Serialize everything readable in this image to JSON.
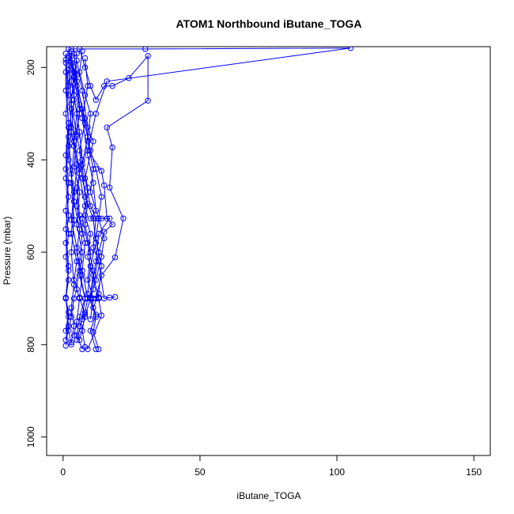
{
  "chart_data": {
    "type": "scatter",
    "title": "ATOM1 Northbound iButane_TOGA",
    "xlabel": "iButane_TOGA",
    "ylabel": "Pressure (mbar)",
    "xlim": [
      -6,
      156
    ],
    "ylim": [
      1040,
      155
    ],
    "y_reversed": true,
    "x_ticks": [
      0,
      50,
      100,
      150
    ],
    "y_ticks": [
      200,
      400,
      600,
      800,
      1000
    ],
    "grid": false,
    "legend": "none",
    "marker": "open-circle",
    "connected": true,
    "colors": {
      "series": "#0000ff",
      "axis": "#000000"
    },
    "series": [
      {
        "points": [
          [
            2,
            180
          ],
          [
            3,
            230
          ],
          [
            5,
            300
          ],
          [
            4,
            360
          ],
          [
            6,
            420
          ],
          [
            5,
            500
          ],
          [
            7,
            560
          ],
          [
            6,
            620
          ],
          [
            5,
            680
          ],
          [
            4,
            700
          ],
          [
            3,
            740
          ],
          [
            2,
            770
          ],
          [
            3,
            800
          ]
        ]
      },
      {
        "points": [
          [
            1,
            190
          ],
          [
            2,
            260
          ],
          [
            3,
            330
          ],
          [
            2,
            400
          ],
          [
            4,
            470
          ],
          [
            3,
            530
          ],
          [
            5,
            590
          ],
          [
            6,
            640
          ],
          [
            8,
            700
          ],
          [
            6,
            740
          ],
          [
            5,
            780
          ],
          [
            7,
            810
          ]
        ]
      },
      {
        "points": [
          [
            4,
            200
          ],
          [
            6,
            280
          ],
          [
            9,
            350
          ],
          [
            7,
            410
          ],
          [
            8,
            480
          ],
          [
            11,
            527
          ],
          [
            12,
            580
          ],
          [
            10,
            630
          ],
          [
            9,
            690
          ],
          [
            12,
            740
          ],
          [
            11,
            773
          ],
          [
            13,
            810
          ]
        ]
      },
      {
        "points": [
          [
            3,
            175
          ],
          [
            5,
            240
          ],
          [
            8,
            310
          ],
          [
            10,
            380
          ],
          [
            12,
            420
          ],
          [
            14,
            480
          ],
          [
            13,
            527
          ],
          [
            15,
            570
          ],
          [
            14,
            610
          ],
          [
            12,
            660
          ],
          [
            10,
            700
          ],
          [
            8,
            740
          ],
          [
            6,
            790
          ]
        ]
      },
      {
        "points": [
          [
            2,
            160
          ],
          [
            4,
            220
          ],
          [
            6,
            290
          ],
          [
            5,
            350
          ],
          [
            7,
            400
          ],
          [
            9,
            460
          ],
          [
            8,
            520
          ],
          [
            10,
            560
          ],
          [
            9,
            610
          ],
          [
            11,
            650
          ],
          [
            13,
            700
          ],
          [
            14,
            737
          ],
          [
            9,
            810
          ]
        ]
      },
      {
        "points": [
          [
            1,
            170
          ],
          [
            1,
            250
          ],
          [
            2,
            320
          ],
          [
            1,
            390
          ],
          [
            2,
            450
          ],
          [
            1,
            510
          ],
          [
            2,
            560
          ],
          [
            1,
            610
          ],
          [
            2,
            660
          ],
          [
            1,
            700
          ],
          [
            2,
            740
          ],
          [
            1,
            790
          ]
        ]
      },
      {
        "points": [
          [
            3,
            165
          ],
          [
            4,
            270
          ],
          [
            3,
            340
          ],
          [
            5,
            410
          ],
          [
            4,
            490
          ],
          [
            6,
            550
          ],
          [
            5,
            600
          ],
          [
            7,
            650
          ],
          [
            6,
            698
          ],
          [
            8,
            735
          ],
          [
            7,
            770
          ],
          [
            8,
            805
          ]
        ]
      },
      {
        "points": [
          [
            5,
            185
          ],
          [
            7,
            250
          ],
          [
            9,
            330
          ],
          [
            11,
            360
          ],
          [
            8,
            440
          ],
          [
            10,
            500
          ],
          [
            12,
            527
          ],
          [
            11,
            590
          ],
          [
            13,
            620
          ],
          [
            15,
            700
          ],
          [
            17,
            698
          ],
          [
            19,
            697
          ]
        ]
      },
      {
        "points": [
          [
            2,
            195
          ],
          [
            3,
            280
          ],
          [
            4,
            370
          ],
          [
            3,
            450
          ],
          [
            4,
            530
          ],
          [
            3,
            600
          ],
          [
            4,
            670
          ],
          [
            3,
            720
          ],
          [
            4,
            760
          ],
          [
            3,
            795
          ]
        ]
      },
      {
        "points": [
          [
            6,
            160
          ],
          [
            8,
            200
          ],
          [
            10,
            240
          ],
          [
            12,
            270
          ],
          [
            15,
            240
          ],
          [
            18,
            240
          ],
          [
            24,
            223
          ],
          [
            31,
            175
          ],
          [
            31,
            272
          ],
          [
            16,
            330
          ],
          [
            18,
            373
          ],
          [
            17,
            460
          ],
          [
            22,
            527
          ],
          [
            19,
            611
          ],
          [
            14,
            650
          ],
          [
            12,
            700
          ]
        ]
      },
      {
        "points": [
          [
            1,
            183
          ],
          [
            2,
            240
          ],
          [
            1,
            300
          ],
          [
            2,
            370
          ],
          [
            1,
            440
          ],
          [
            2,
            520
          ],
          [
            1,
            580
          ],
          [
            2,
            640
          ],
          [
            1,
            698
          ],
          [
            2,
            760
          ],
          [
            1,
            802
          ]
        ]
      },
      {
        "points": [
          [
            4,
            170
          ],
          [
            5,
            230
          ],
          [
            7,
            290
          ],
          [
            8,
            320
          ],
          [
            6,
            380
          ],
          [
            7,
            440
          ],
          [
            9,
            495
          ],
          [
            8,
            540
          ],
          [
            10,
            600
          ],
          [
            9,
            660
          ],
          [
            11,
            700
          ],
          [
            10,
            745
          ]
        ]
      },
      {
        "points": [
          [
            7,
            165
          ],
          [
            6,
            210
          ],
          [
            8,
            260
          ],
          [
            10,
            300
          ],
          [
            9,
            360
          ],
          [
            11,
            420
          ],
          [
            10,
            470
          ],
          [
            13,
            527
          ],
          [
            12,
            570
          ],
          [
            14,
            630
          ],
          [
            13,
            690
          ],
          [
            11,
            720
          ]
        ]
      },
      {
        "points": [
          [
            3,
            160
          ],
          [
            30,
            160
          ],
          [
            105,
            158
          ],
          [
            16,
            230
          ],
          [
            12,
            300
          ],
          [
            9,
            380
          ],
          [
            14,
            424
          ],
          [
            15,
            455
          ],
          [
            16,
            527
          ],
          [
            18,
            540
          ],
          [
            15,
            556
          ],
          [
            13,
            600
          ],
          [
            11,
            680
          ]
        ]
      },
      {
        "points": [
          [
            2,
            205
          ],
          [
            3,
            290
          ],
          [
            2,
            350
          ],
          [
            3,
            430
          ],
          [
            4,
            490
          ],
          [
            3,
            560
          ],
          [
            5,
            620
          ],
          [
            4,
            660
          ],
          [
            6,
            700
          ],
          [
            5,
            750
          ],
          [
            4,
            780
          ]
        ]
      },
      {
        "points": [
          [
            1,
            210
          ],
          [
            2,
            330
          ],
          [
            1,
            420
          ],
          [
            2,
            480
          ],
          [
            1,
            550
          ],
          [
            2,
            630
          ],
          [
            1,
            700
          ],
          [
            2,
            730
          ],
          [
            1,
            770
          ]
        ]
      },
      {
        "points": [
          [
            8,
            180
          ],
          [
            9,
            240
          ],
          [
            7,
            310
          ],
          [
            9,
            390
          ],
          [
            11,
            450
          ],
          [
            12,
            510
          ],
          [
            10,
            527
          ],
          [
            14,
            527
          ],
          [
            17,
            527
          ],
          [
            13,
            560
          ],
          [
            12,
            620
          ],
          [
            10,
            698
          ],
          [
            13,
            698
          ]
        ]
      },
      {
        "points": [
          [
            5,
            170
          ],
          [
            4,
            260
          ],
          [
            6,
            340
          ],
          [
            7,
            400
          ],
          [
            5,
            460
          ],
          [
            6,
            520
          ],
          [
            8,
            580
          ],
          [
            7,
            640
          ],
          [
            9,
            700
          ],
          [
            8,
            730
          ],
          [
            6,
            760
          ]
        ]
      },
      {
        "points": [
          [
            2,
            175
          ],
          [
            4,
            210
          ],
          [
            3,
            280
          ],
          [
            5,
            345
          ],
          [
            4,
            415
          ],
          [
            6,
            470
          ],
          [
            5,
            540
          ],
          [
            7,
            600
          ],
          [
            6,
            650
          ],
          [
            8,
            700
          ],
          [
            7,
            745
          ],
          [
            5,
            790
          ]
        ]
      },
      {
        "points": [
          [
            3,
            190
          ],
          [
            5,
            215
          ],
          [
            6,
            300
          ],
          [
            4,
            360
          ],
          [
            6,
            430
          ],
          [
            8,
            500
          ],
          [
            7,
            527
          ],
          [
            9,
            580
          ],
          [
            11,
            640
          ],
          [
            10,
            700
          ],
          [
            12,
            735
          ],
          [
            10,
            770
          ],
          [
            12,
            810
          ]
        ]
      }
    ]
  }
}
